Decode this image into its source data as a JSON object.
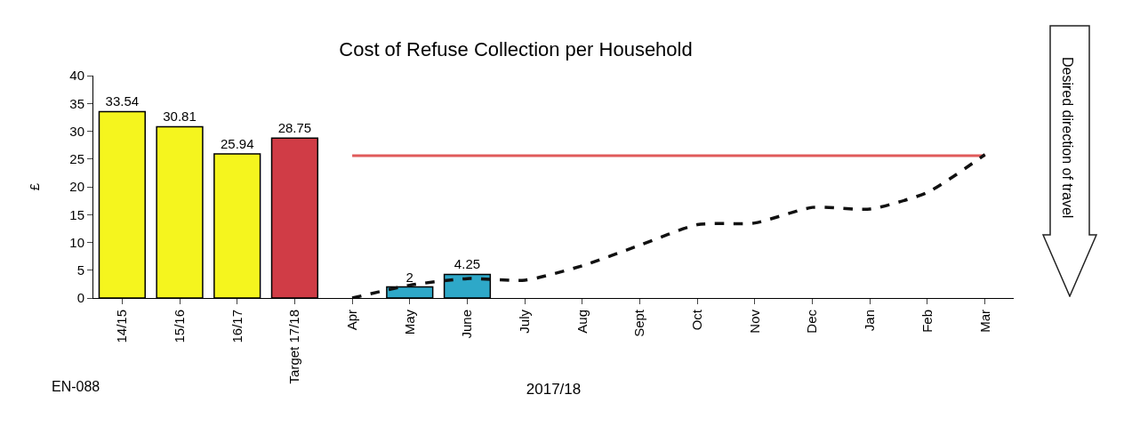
{
  "chart_data": {
    "type": "bar",
    "title": "Cost of Refuse Collection per Household",
    "ylabel": "£",
    "xlabel": "2017/18",
    "annotations": [
      "EN-088",
      "Desired direction of travel"
    ],
    "categories": [
      "14/15",
      "15/16",
      "16/17",
      "Target 17/18",
      "Apr",
      "May",
      "June",
      "July",
      "Aug",
      "Sept",
      "Oct",
      "Nov",
      "Dec",
      "Jan",
      "Feb",
      "Mar"
    ],
    "series": [
      {
        "colors": [
          "#f5f51e",
          "#f5f51e",
          "#f5f51e",
          "#d03c46",
          null,
          "#2ea8c8",
          "#2ea8c8",
          null,
          null,
          null,
          null,
          null,
          null,
          null,
          null,
          null
        ],
        "values": [
          33.54,
          30.81,
          25.94,
          28.75,
          null,
          2,
          4.25,
          null,
          null,
          null,
          null,
          null,
          null,
          null,
          null,
          null
        ],
        "value_labels": [
          "33.54",
          "30.81",
          "25.94",
          "28.75",
          null,
          "2",
          "4.25",
          null,
          null,
          null,
          null,
          null,
          null,
          null,
          null,
          null
        ]
      },
      {
        "type": "line",
        "color": "#e05a5a",
        "line_style": "solid",
        "values": [
          null,
          null,
          null,
          null,
          25.6,
          25.6,
          25.6,
          25.6,
          25.6,
          25.6,
          25.6,
          25.6,
          25.6,
          25.6,
          25.6,
          25.6
        ]
      },
      {
        "type": "line",
        "color": "#111111",
        "line_style": "dashed",
        "values": [
          null,
          null,
          null,
          null,
          0,
          2.3,
          3.5,
          3.2,
          5.8,
          9.5,
          13.2,
          13.5,
          16.3,
          16,
          19,
          25.8
        ]
      }
    ],
    "ylim": [
      0,
      40
    ],
    "yticks": [
      0,
      5,
      10,
      15,
      20,
      25,
      30,
      35,
      40
    ],
    "grid": false,
    "legend": false,
    "marker": "none"
  }
}
